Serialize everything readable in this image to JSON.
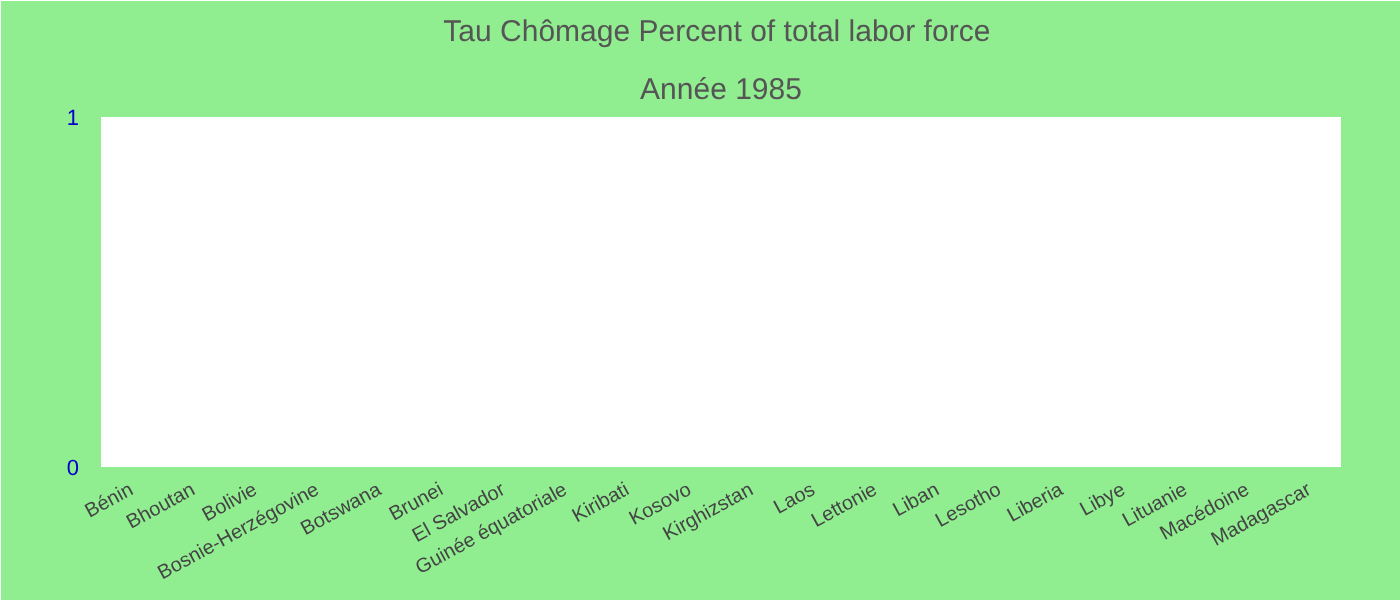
{
  "chart_data": {
    "type": "bar",
    "title": "Tau Chômage  Percent of total labor force",
    "subtitle": "Année 1985",
    "categories": [
      "Bénin",
      "Bhoutan",
      "Bolivie",
      "Bosnie-Herzégovine",
      "Botswana",
      "Brunei",
      "El Salvador",
      "Guinée équatoriale",
      "Kiribati",
      "Kosovo",
      "Kirghizstan",
      "Laos",
      "Lettonie",
      "Liban",
      "Lesotho",
      "Liberia",
      "Libye",
      "Lituanie",
      "Macédoine",
      "Madagascar"
    ],
    "values": [
      null,
      null,
      null,
      null,
      null,
      null,
      null,
      null,
      null,
      null,
      null,
      null,
      null,
      null,
      null,
      null,
      null,
      null,
      null,
      null
    ],
    "ylim": [
      0,
      1
    ],
    "yticks": [
      0,
      1
    ],
    "grid": false
  }
}
